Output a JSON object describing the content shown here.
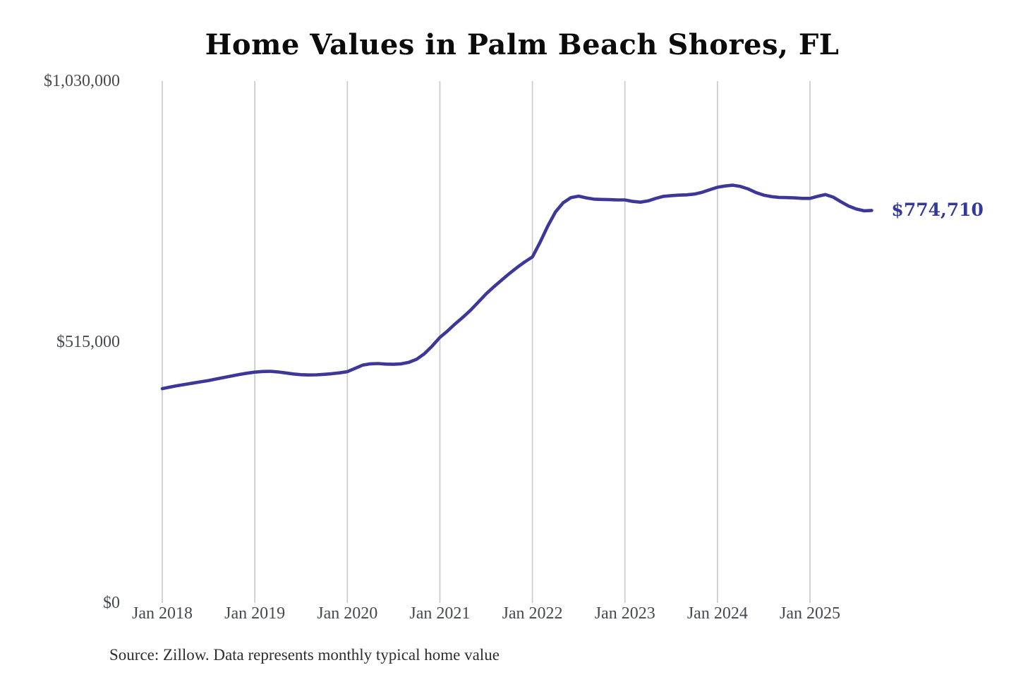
{
  "title": "Home Values in Palm Beach Shores, FL",
  "source_note": "Source: Zillow. Data represents monthly typical home value",
  "latest_value_label": "$774,710",
  "colors": {
    "line": "#3d3897",
    "latest_value_text": "#35389b",
    "grid": "#cbcbcb",
    "axis_text": "#46494e",
    "title_text": "#0b0b0b",
    "source_text": "#2e2e2e",
    "background": "#ffffff"
  },
  "chart_data": {
    "type": "line",
    "title": "Home Values in Palm Beach Shores, FL",
    "xlabel": "",
    "ylabel": "",
    "ylim": [
      0,
      1030000
    ],
    "grid": "vertical-only",
    "legend": "none",
    "x_start_month": "2018-01",
    "x_tick_labels": [
      "Jan 2018",
      "Jan 2019",
      "Jan 2020",
      "Jan 2021",
      "Jan 2022",
      "Jan 2023",
      "Jan 2024",
      "Jan 2025"
    ],
    "x_tick_month_indices": [
      0,
      12,
      24,
      36,
      48,
      60,
      72,
      84
    ],
    "y_ticks": [
      {
        "label": "$0",
        "value": 0
      },
      {
        "label": "$515,000",
        "value": 515000
      },
      {
        "label": "$1,030,000",
        "value": 1030000
      }
    ],
    "last_value": 774710,
    "values_monthly": [
      423000,
      426000,
      429000,
      431500,
      434000,
      436500,
      439000,
      442000,
      445000,
      448000,
      451000,
      453500,
      455500,
      456800,
      457200,
      456000,
      454000,
      452000,
      450500,
      450000,
      450300,
      451200,
      452500,
      454200,
      456500,
      463000,
      469500,
      472000,
      472500,
      471500,
      471000,
      472000,
      475000,
      481000,
      492000,
      507000,
      524000,
      537000,
      551000,
      564000,
      578000,
      594000,
      610000,
      624000,
      637000,
      650000,
      662000,
      673000,
      683000,
      712000,
      744000,
      772000,
      790000,
      800000,
      803000,
      799500,
      797000,
      796500,
      796000,
      795500,
      795500,
      792500,
      791000,
      793500,
      798500,
      802500,
      804000,
      805000,
      805500,
      807000,
      810500,
      815500,
      820500,
      823000,
      824500,
      822000,
      817000,
      810000,
      805000,
      802000,
      800500,
      800000,
      799500,
      798500,
      798500,
      802500,
      806000,
      801000,
      792000,
      783500,
      777500,
      774000,
      774710
    ]
  }
}
